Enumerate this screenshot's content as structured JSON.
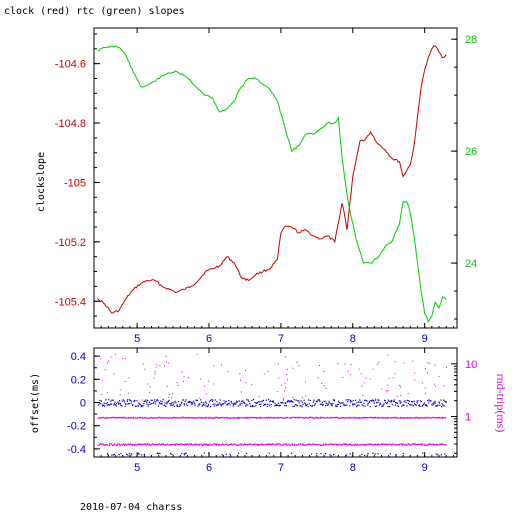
{
  "chart_data": [
    {
      "type": "line",
      "title": "clock (red) rtc (green) slopes",
      "xlabel": "",
      "ylabel": "clockslope",
      "xlim": [
        4.4,
        9.45
      ],
      "ylim": [
        -105.49,
        -104.48
      ],
      "y2lim": [
        22.84,
        28.2
      ],
      "x_ticks": [
        "5",
        "6",
        "7",
        "8",
        "9"
      ],
      "y_ticks": [
        "-104.6",
        "-104.8",
        "-105",
        "-105.2",
        "-105.4"
      ],
      "y2_ticks": [
        "28",
        "26",
        "24"
      ],
      "grid": false,
      "colors": {
        "clock": "#cc0000",
        "rtc": "#00cc00",
        "left_axis": "#cc0000",
        "right_axis": "#00cc00"
      },
      "series": [
        {
          "name": "clock",
          "axis": "left",
          "x": [
            4.45,
            4.55,
            4.65,
            4.75,
            4.85,
            4.95,
            5.05,
            5.15,
            5.25,
            5.35,
            5.45,
            5.55,
            5.65,
            5.75,
            5.85,
            5.95,
            6.05,
            6.15,
            6.25,
            6.35,
            6.45,
            6.55,
            6.65,
            6.75,
            6.85,
            6.95,
            7.0,
            7.05,
            7.15,
            7.25,
            7.35,
            7.45,
            7.55,
            7.65,
            7.75,
            7.85,
            7.88,
            7.92,
            7.95,
            8.0,
            8.05,
            8.1,
            8.15,
            8.25,
            8.35,
            8.45,
            8.55,
            8.65,
            8.7,
            8.75,
            8.8,
            8.85,
            8.9,
            8.95,
            9.0,
            9.05,
            9.1,
            9.15,
            9.2,
            9.25,
            9.3
          ],
          "values": [
            -105.39,
            -105.41,
            -105.44,
            -105.43,
            -105.39,
            -105.36,
            -105.34,
            -105.33,
            -105.33,
            -105.35,
            -105.36,
            -105.37,
            -105.36,
            -105.35,
            -105.33,
            -105.3,
            -105.29,
            -105.28,
            -105.25,
            -105.27,
            -105.32,
            -105.33,
            -105.31,
            -105.3,
            -105.29,
            -105.26,
            -105.17,
            -105.15,
            -105.15,
            -105.17,
            -105.16,
            -105.18,
            -105.19,
            -105.18,
            -105.2,
            -105.07,
            -105.1,
            -105.16,
            -105.09,
            -104.98,
            -104.92,
            -104.86,
            -104.86,
            -104.83,
            -104.87,
            -104.89,
            -104.92,
            -104.93,
            -104.98,
            -104.96,
            -104.94,
            -104.88,
            -104.78,
            -104.68,
            -104.62,
            -104.58,
            -104.55,
            -104.54,
            -104.56,
            -104.58,
            -104.57
          ]
        },
        {
          "name": "rtc",
          "axis": "right",
          "x": [
            4.45,
            4.55,
            4.65,
            4.75,
            4.85,
            4.95,
            5.05,
            5.15,
            5.25,
            5.35,
            5.45,
            5.55,
            5.65,
            5.75,
            5.85,
            5.95,
            6.05,
            6.15,
            6.25,
            6.35,
            6.45,
            6.55,
            6.65,
            6.75,
            6.85,
            6.95,
            7.05,
            7.15,
            7.25,
            7.35,
            7.45,
            7.55,
            7.65,
            7.75,
            7.8,
            7.85,
            7.9,
            7.95,
            8.05,
            8.15,
            8.25,
            8.35,
            8.45,
            8.55,
            8.65,
            8.7,
            8.75,
            8.8,
            8.85,
            8.9,
            8.95,
            9.0,
            9.05,
            9.1,
            9.15,
            9.2,
            9.25,
            9.3
          ],
          "values": [
            27.8,
            27.85,
            27.88,
            27.85,
            27.7,
            27.4,
            27.15,
            27.18,
            27.25,
            27.35,
            27.4,
            27.42,
            27.35,
            27.25,
            27.1,
            27.0,
            26.95,
            26.7,
            26.75,
            26.9,
            27.15,
            27.3,
            27.3,
            27.2,
            27.1,
            26.9,
            26.45,
            26.0,
            26.1,
            26.3,
            26.3,
            26.4,
            26.5,
            26.5,
            26.6,
            25.9,
            25.4,
            25.0,
            24.4,
            24.0,
            24.0,
            24.1,
            24.3,
            24.4,
            24.7,
            25.1,
            25.1,
            24.9,
            24.5,
            24.0,
            23.5,
            23.1,
            22.95,
            23.05,
            23.3,
            23.2,
            23.4,
            23.35
          ]
        }
      ]
    },
    {
      "type": "scatter",
      "title": "",
      "xlabel": "",
      "ylabel": "offset(ms)",
      "y2label": "rnd-trip(ms)",
      "xlim": [
        4.4,
        9.45
      ],
      "ylim": [
        -0.47,
        0.47
      ],
      "y2lim": [
        0.17,
        20
      ],
      "y2_scale": "log",
      "x_ticks": [
        "5",
        "6",
        "7",
        "8",
        "9"
      ],
      "y_ticks": [
        "0.4",
        "0.2",
        "0",
        "-0.2",
        "-0.4"
      ],
      "y2_ticks": [
        "10",
        "1"
      ],
      "grid": false,
      "colors": {
        "offset": "#0000cc",
        "rnd_trip": "#dd00dd",
        "left_axis": "#0000cc",
        "right_axis": "#dd00dd"
      },
      "series": [
        {
          "name": "offset",
          "axis": "left",
          "x_range": [
            4.45,
            9.3
          ],
          "y_center": 0.0,
          "y_spread": 0.03
        },
        {
          "name": "rnd-trip",
          "axis": "right",
          "x_range": [
            4.45,
            9.3
          ],
          "bands": [
            0.97,
            0.3
          ],
          "outlier_range": [
            2,
            16
          ]
        }
      ]
    }
  ],
  "footer": {
    "caption": "2010-07-04 charss"
  }
}
